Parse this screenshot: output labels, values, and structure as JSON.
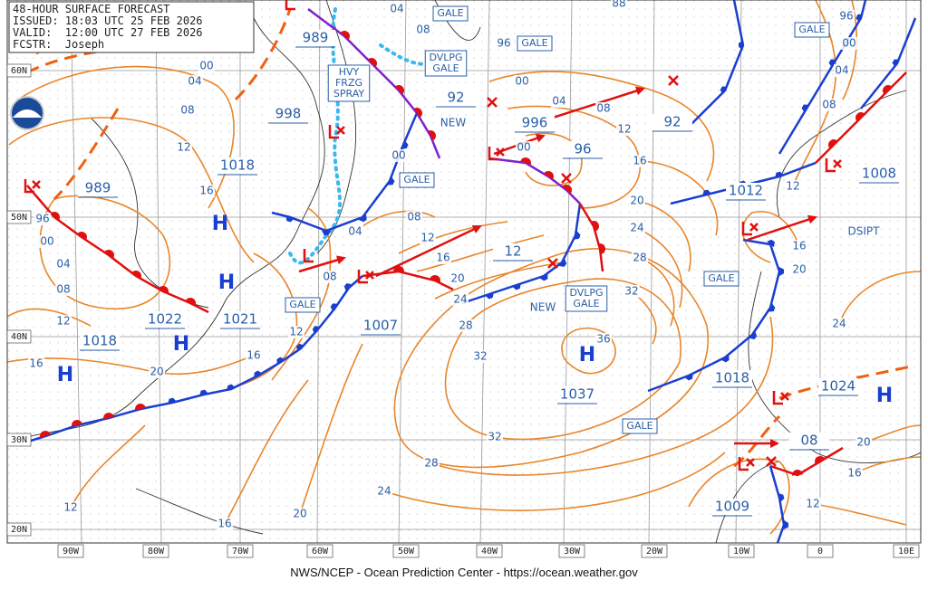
{
  "header": {
    "title": "48-HOUR SURFACE FORECAST",
    "issued": "ISSUED: 18:03 UTC 25 FEB 2026",
    "valid": "VALID:  12:00 UTC 27 FEB 2026",
    "forecaster": "FCSTR:  Joseph"
  },
  "footer": "NWS/NCEP - Ocean Prediction Center - https://ocean.weather.gov",
  "lat_labels": [
    "60N",
    "50N",
    "40N",
    "30N",
    "20N"
  ],
  "lon_labels": [
    "90W",
    "80W",
    "70W",
    "60W",
    "50W",
    "40W",
    "30W",
    "20W",
    "10W",
    "0",
    "10E"
  ],
  "centers": [
    "989",
    "998",
    "1018",
    "989",
    "1022",
    "1021",
    "1018",
    "1007",
    "92",
    "996",
    "96",
    "92",
    "12",
    "1037",
    "1018",
    "1012",
    "1008",
    "1024",
    "08",
    "1009"
  ],
  "highs": [
    "H",
    "H",
    "H",
    "H",
    "H",
    "H"
  ],
  "boxes": [
    "GALE",
    "GALE",
    "GALE",
    "GALE",
    "GALE",
    "GALE",
    "GALE",
    "DVLPG\nGALE",
    "DVLPG\nGALE",
    "HVY\nFRZG\nSPRAY"
  ],
  "notes": [
    "NEW",
    "NEW",
    "DSIPT",
    "96"
  ],
  "isobar_labels": [
    "00",
    "04",
    "08",
    "12",
    "16",
    "96",
    "00",
    "04",
    "08",
    "12",
    "16",
    "20",
    "16",
    "12",
    "08",
    "04",
    "08",
    "12",
    "16",
    "20",
    "24",
    "28",
    "32",
    "36",
    "32",
    "28",
    "24",
    "20",
    "16",
    "12",
    "00",
    "04",
    "08",
    "12",
    "16",
    "20",
    "24",
    "28",
    "32",
    "00",
    "88",
    "96",
    "00",
    "04",
    "08",
    "12",
    "16",
    "20",
    "24",
    "20",
    "16",
    "12",
    "04",
    "08",
    "00"
  ]
}
